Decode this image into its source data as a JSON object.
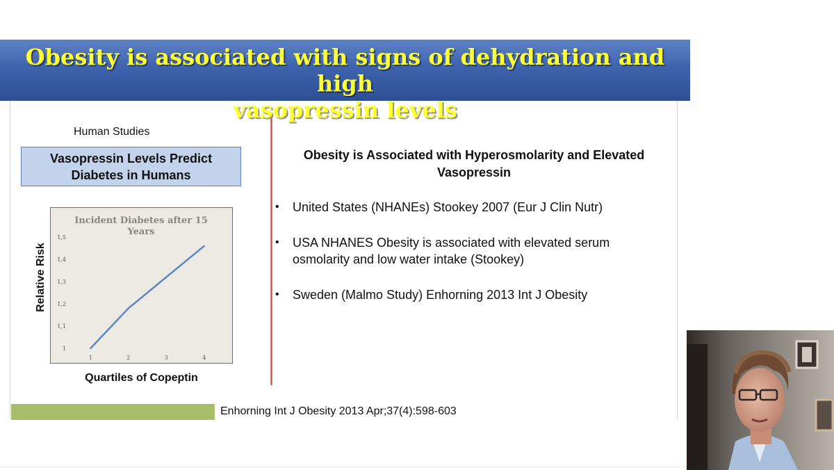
{
  "slide": {
    "title_line1": "Obesity is associated with signs of dehydration and high",
    "title_line2": "vasopressin levels"
  },
  "left": {
    "section_label": "Human Studies",
    "box_line1": "Vasopressin Levels Predict",
    "box_line2": "Diabetes  in Humans",
    "y_axis_label": "Relative Risk",
    "x_axis_label": "Quartiles of Copeptin"
  },
  "chart_data": {
    "type": "line",
    "title_line1": "Incident Diabetes after 15",
    "title_line2": "Years",
    "x": [
      1,
      2,
      3,
      4
    ],
    "x_tick_labels": [
      "1",
      "2",
      "3",
      "4"
    ],
    "series": [
      {
        "values": [
          1.0,
          1.18,
          1.32,
          1.46
        ]
      }
    ],
    "y_ticks": [
      1,
      1.1,
      1.2,
      1.3,
      1.4,
      1.5
    ],
    "y_tick_labels": [
      "1",
      "1,1",
      "1,2",
      "1,3",
      "1,4",
      "1,5"
    ],
    "ylim": [
      1,
      1.5
    ],
    "line_color": "#5b86c8",
    "background": "#edeae4",
    "grid": false
  },
  "right": {
    "heading_line1": "Obesity is Associated with Hyperosmolarity and Elevated",
    "heading_line2": "Vasopressin",
    "bullets": [
      {
        "line1": "United States (NHANEs) Stookey 2007 (Eur J Clin Nutr)",
        "line2": ""
      },
      {
        "line1": "USA NHANES  Obesity is associated with elevated serum",
        "line2": "osmolarity and low water intake (Stookey)"
      },
      {
        "line1": "Sweden (Malmo Study) Enhorning 2013 Int J Obesity",
        "line2": ""
      }
    ],
    "bullet_glyph": "•"
  },
  "footer": {
    "citation": "Enhorning  Int J Obesity 2013 Apr;37(4):598-603"
  },
  "colors": {
    "title_text": "#ffff36",
    "title_bg": "#3e63ac",
    "box_bg": "#c3d3ec",
    "divider": "#d63a25",
    "footer_bar": "#a7bd6a"
  }
}
